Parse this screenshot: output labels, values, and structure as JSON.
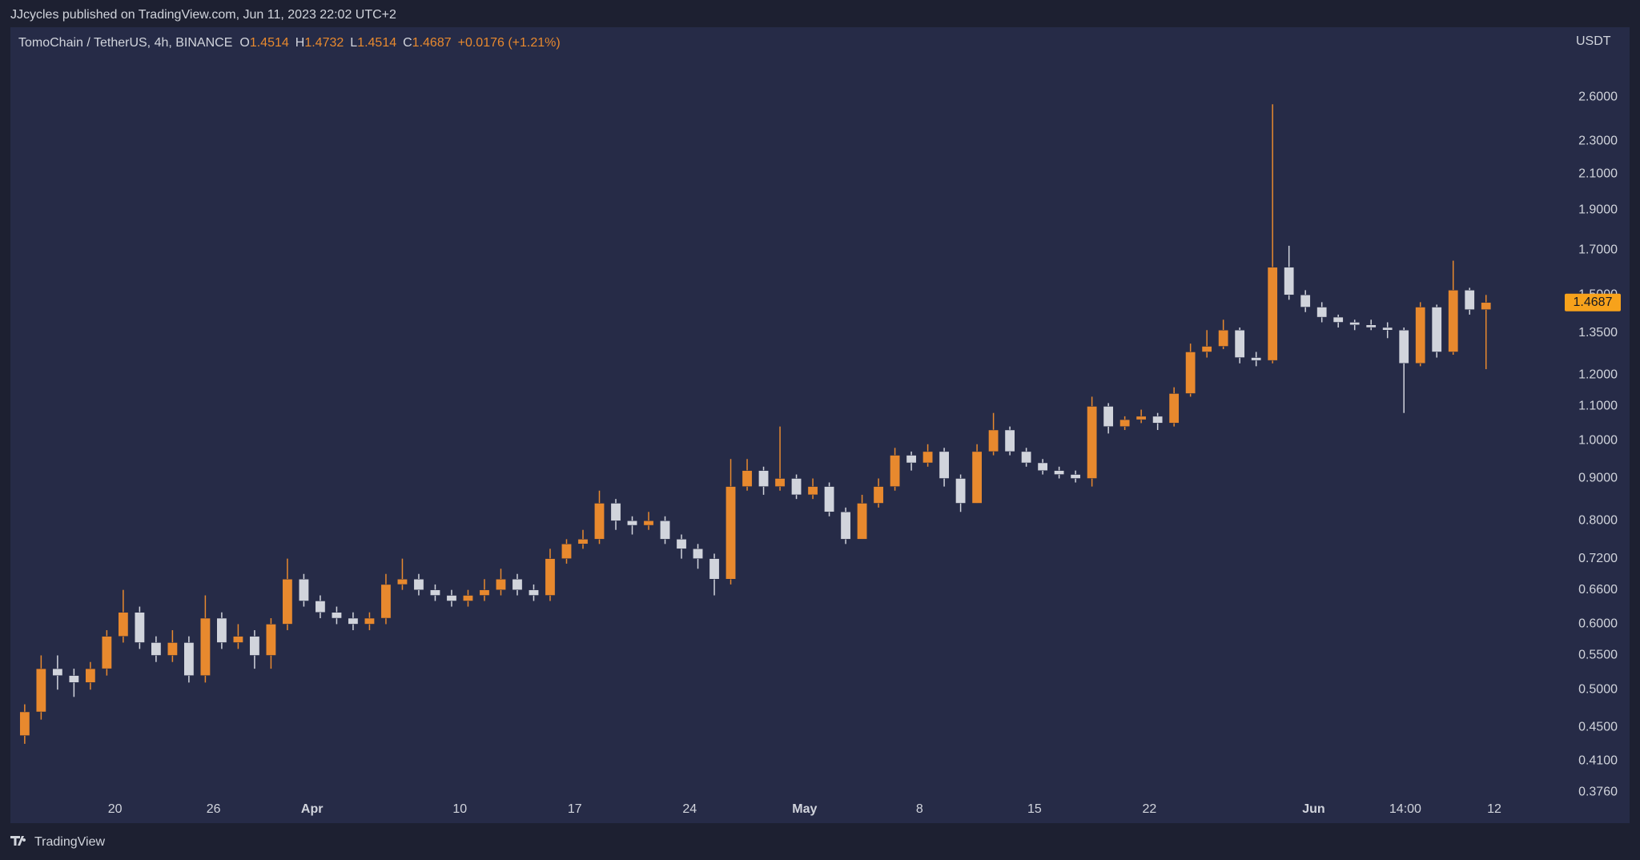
{
  "published": "JJcycles published on TradingView.com, Jun 11, 2023 22:02 UTC+2",
  "brand": "TradingView",
  "chart_data": {
    "type": "candlestick",
    "title": "TomoChain / TetherUS, 4h, BINANCE",
    "legend_ohlc": [
      {
        "key": "O",
        "value": 1.4514
      },
      {
        "key": "H",
        "value": 1.4732
      },
      {
        "key": "L",
        "value": 1.4514
      },
      {
        "key": "C",
        "value": 1.4687
      }
    ],
    "change": "+0.0176 (+1.21%)",
    "y_unit": "USDT",
    "log_scale": true,
    "grid": false,
    "up_color": "#e8892e",
    "down_color": "#d1d4dc",
    "last_price_color": "#f7a21b",
    "xlim": [
      "Mar 14",
      "Jun 16"
    ],
    "xticks": [
      {
        "value": "Mar 20",
        "label": "20"
      },
      {
        "value": "Mar 26",
        "label": "26"
      },
      {
        "value": "Apr 1",
        "label": "Apr",
        "bold": true
      },
      {
        "value": "Apr 10",
        "label": "10"
      },
      {
        "value": "Apr 17",
        "label": "17"
      },
      {
        "value": "Apr 24",
        "label": "24"
      },
      {
        "value": "May 1",
        "label": "May",
        "bold": true
      },
      {
        "value": "May 8",
        "label": "8"
      },
      {
        "value": "May 15",
        "label": "15"
      },
      {
        "value": "May 22",
        "label": "22"
      },
      {
        "value": "Jun 1",
        "label": "Jun",
        "bold": true
      },
      {
        "value": "Jun 6 14:00",
        "label": "14:00"
      },
      {
        "value": "Jun 12",
        "label": "12"
      }
    ],
    "ylim": [
      0.367,
      3.16
    ],
    "yticks": [
      {
        "value": 2.6,
        "label": "2.6000"
      },
      {
        "value": 2.3,
        "label": "2.3000"
      },
      {
        "value": 2.1,
        "label": "2.1000"
      },
      {
        "value": 1.9,
        "label": "1.9000"
      },
      {
        "value": 1.7,
        "label": "1.7000"
      },
      {
        "value": 1.5,
        "label": "1.5000"
      },
      {
        "value": 1.35,
        "label": "1.3500"
      },
      {
        "value": 1.2,
        "label": "1.2000"
      },
      {
        "value": 1.1,
        "label": "1.1000"
      },
      {
        "value": 1.0,
        "label": "1.0000"
      },
      {
        "value": 0.9,
        "label": "0.9000"
      },
      {
        "value": 0.8,
        "label": "0.8000"
      },
      {
        "value": 0.72,
        "label": "0.7200"
      },
      {
        "value": 0.66,
        "label": "0.6600"
      },
      {
        "value": 0.6,
        "label": "0.6000"
      },
      {
        "value": 0.55,
        "label": "0.5500"
      },
      {
        "value": 0.5,
        "label": "0.5000"
      },
      {
        "value": 0.45,
        "label": "0.4500"
      },
      {
        "value": 0.41,
        "label": "0.4100"
      },
      {
        "value": 0.376,
        "label": "0.3760"
      }
    ],
    "x": [
      "Mar 14",
      "Mar 15",
      "Mar 16",
      "Mar 17",
      "Mar 18",
      "Mar 19",
      "Mar 20",
      "Mar 21",
      "Mar 22",
      "Mar 23",
      "Mar 24",
      "Mar 25",
      "Mar 26",
      "Mar 27",
      "Mar 28",
      "Mar 29",
      "Mar 30",
      "Mar 31",
      "Apr 1",
      "Apr 2",
      "Apr 3",
      "Apr 4",
      "Apr 5",
      "Apr 6",
      "Apr 7",
      "Apr 8",
      "Apr 9",
      "Apr 10",
      "Apr 11",
      "Apr 12",
      "Apr 13",
      "Apr 14",
      "Apr 15",
      "Apr 16",
      "Apr 17",
      "Apr 18",
      "Apr 19",
      "Apr 20",
      "Apr 21",
      "Apr 22",
      "Apr 23",
      "Apr 24",
      "Apr 25",
      "Apr 26",
      "Apr 27",
      "Apr 28",
      "Apr 29",
      "Apr 30",
      "May 1",
      "May 2",
      "May 3",
      "May 4",
      "May 5",
      "May 6",
      "May 7",
      "May 8",
      "May 9",
      "May 10",
      "May 11",
      "May 12",
      "May 13",
      "May 14",
      "May 15",
      "May 16",
      "May 17",
      "May 18",
      "May 19",
      "May 20",
      "May 21",
      "May 22",
      "May 23",
      "May 24",
      "May 25",
      "May 26",
      "May 27",
      "May 28",
      "May 29",
      "May 30",
      "May 31",
      "Jun 1",
      "Jun 2",
      "Jun 3",
      "Jun 4",
      "Jun 5",
      "Jun 6",
      "Jun 7",
      "Jun 8",
      "Jun 9",
      "Jun 10",
      "Jun 11"
    ],
    "open": [
      0.44,
      0.47,
      0.53,
      0.52,
      0.51,
      0.53,
      0.58,
      0.62,
      0.57,
      0.55,
      0.57,
      0.52,
      0.61,
      0.57,
      0.58,
      0.55,
      0.6,
      0.68,
      0.64,
      0.62,
      0.61,
      0.6,
      0.61,
      0.67,
      0.68,
      0.66,
      0.65,
      0.64,
      0.65,
      0.66,
      0.68,
      0.66,
      0.65,
      0.72,
      0.75,
      0.76,
      0.84,
      0.8,
      0.79,
      0.8,
      0.76,
      0.74,
      0.72,
      0.68,
      0.88,
      0.92,
      0.88,
      0.9,
      0.86,
      0.88,
      0.82,
      0.76,
      0.84,
      0.88,
      0.96,
      0.94,
      0.97,
      0.9,
      0.84,
      0.97,
      1.03,
      0.97,
      0.94,
      0.92,
      0.91,
      0.9,
      1.1,
      1.04,
      1.06,
      1.07,
      1.05,
      1.14,
      1.28,
      1.3,
      1.36,
      1.26,
      1.25,
      1.62,
      1.5,
      1.45,
      1.41,
      1.39,
      1.38,
      1.37,
      1.36,
      1.24,
      1.45,
      1.28,
      1.52,
      1.44
    ],
    "high": [
      0.48,
      0.55,
      0.55,
      0.53,
      0.54,
      0.59,
      0.66,
      0.63,
      0.58,
      0.59,
      0.58,
      0.65,
      0.62,
      0.6,
      0.59,
      0.61,
      0.72,
      0.69,
      0.65,
      0.63,
      0.62,
      0.62,
      0.69,
      0.72,
      0.69,
      0.67,
      0.66,
      0.66,
      0.68,
      0.7,
      0.69,
      0.67,
      0.74,
      0.76,
      0.78,
      0.87,
      0.85,
      0.81,
      0.82,
      0.81,
      0.77,
      0.75,
      0.73,
      0.95,
      0.95,
      0.93,
      1.04,
      0.91,
      0.9,
      0.89,
      0.83,
      0.86,
      0.9,
      0.98,
      0.97,
      0.99,
      0.98,
      0.91,
      0.99,
      1.08,
      1.04,
      0.98,
      0.95,
      0.93,
      0.92,
      1.13,
      1.11,
      1.07,
      1.09,
      1.08,
      1.16,
      1.31,
      1.36,
      1.4,
      1.37,
      1.28,
      2.55,
      1.72,
      1.52,
      1.47,
      1.42,
      1.4,
      1.4,
      1.39,
      1.37,
      1.47,
      1.46,
      1.65,
      1.53,
      1.5
    ],
    "low": [
      0.43,
      0.46,
      0.5,
      0.49,
      0.5,
      0.52,
      0.57,
      0.56,
      0.54,
      0.54,
      0.51,
      0.51,
      0.56,
      0.56,
      0.53,
      0.53,
      0.59,
      0.63,
      0.61,
      0.6,
      0.59,
      0.59,
      0.6,
      0.66,
      0.65,
      0.64,
      0.63,
      0.63,
      0.64,
      0.65,
      0.65,
      0.64,
      0.64,
      0.71,
      0.74,
      0.75,
      0.78,
      0.77,
      0.78,
      0.75,
      0.72,
      0.7,
      0.65,
      0.67,
      0.87,
      0.86,
      0.87,
      0.85,
      0.85,
      0.81,
      0.75,
      0.76,
      0.83,
      0.87,
      0.92,
      0.93,
      0.88,
      0.82,
      0.84,
      0.96,
      0.96,
      0.93,
      0.91,
      0.9,
      0.89,
      0.88,
      1.02,
      1.03,
      1.05,
      1.03,
      1.04,
      1.13,
      1.26,
      1.29,
      1.24,
      1.23,
      1.24,
      1.48,
      1.43,
      1.39,
      1.37,
      1.36,
      1.36,
      1.33,
      1.08,
      1.23,
      1.26,
      1.27,
      1.42,
      1.22
    ],
    "close": [
      0.47,
      0.53,
      0.52,
      0.51,
      0.53,
      0.58,
      0.62,
      0.57,
      0.55,
      0.57,
      0.52,
      0.61,
      0.57,
      0.58,
      0.55,
      0.6,
      0.68,
      0.64,
      0.62,
      0.61,
      0.6,
      0.61,
      0.67,
      0.68,
      0.66,
      0.65,
      0.64,
      0.65,
      0.66,
      0.68,
      0.66,
      0.65,
      0.72,
      0.75,
      0.76,
      0.84,
      0.8,
      0.79,
      0.8,
      0.76,
      0.74,
      0.72,
      0.68,
      0.88,
      0.92,
      0.88,
      0.9,
      0.86,
      0.88,
      0.82,
      0.76,
      0.84,
      0.88,
      0.96,
      0.94,
      0.97,
      0.9,
      0.84,
      0.97,
      1.03,
      0.97,
      0.94,
      0.92,
      0.91,
      0.9,
      1.1,
      1.04,
      1.06,
      1.07,
      1.05,
      1.14,
      1.28,
      1.3,
      1.36,
      1.26,
      1.25,
      1.62,
      1.5,
      1.45,
      1.41,
      1.39,
      1.38,
      1.37,
      1.36,
      1.24,
      1.45,
      1.28,
      1.52,
      1.44,
      1.4687
    ]
  }
}
